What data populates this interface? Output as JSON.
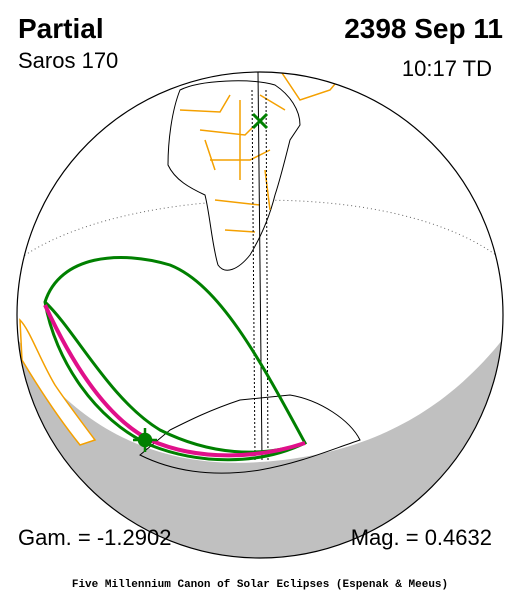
{
  "header": {
    "title": "Partial",
    "date": "2398 Sep 11",
    "saros": "Saros 170",
    "time": "10:17 TD"
  },
  "footer": {
    "gamma": "Gam. = -1.2902",
    "magnitude": "Mag. = 0.4632",
    "credit": "Five Millennium Canon of Solar Eclipses (Espenak & Meeus)"
  }
}
